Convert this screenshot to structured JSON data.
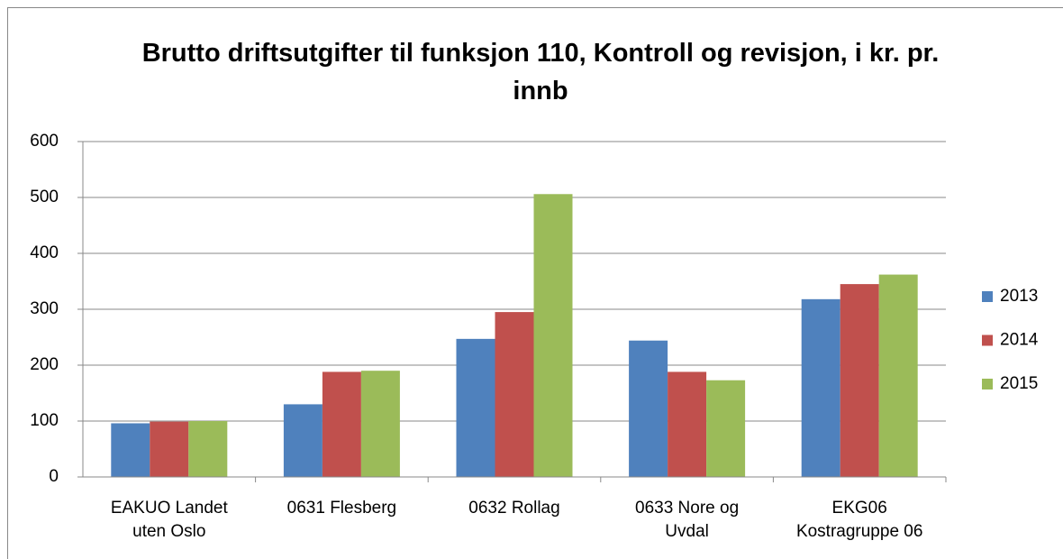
{
  "chart_data": {
    "type": "bar",
    "title": "Brutto driftsutgifter til funksjon 110, Kontroll og revisjon, i kr. pr. innb",
    "categories": [
      "EAKUO Landet uten Oslo",
      "0631 Flesberg",
      "0632 Rollag",
      "0633 Nore og Uvdal",
      "EKG06 Kostragruppe 06"
    ],
    "series": [
      {
        "name": "2013",
        "color": "#4f81bd",
        "values": [
          96,
          130,
          247,
          244,
          318
        ]
      },
      {
        "name": "2014",
        "color": "#c0504d",
        "values": [
          99,
          188,
          295,
          188,
          345
        ]
      },
      {
        "name": "2015",
        "color": "#9bbb59",
        "values": [
          100,
          190,
          506,
          173,
          362
        ]
      }
    ],
    "ylim": [
      0,
      600
    ],
    "yticks": [
      0,
      100,
      200,
      300,
      400,
      500,
      600
    ],
    "grid": true,
    "legend": "right"
  }
}
